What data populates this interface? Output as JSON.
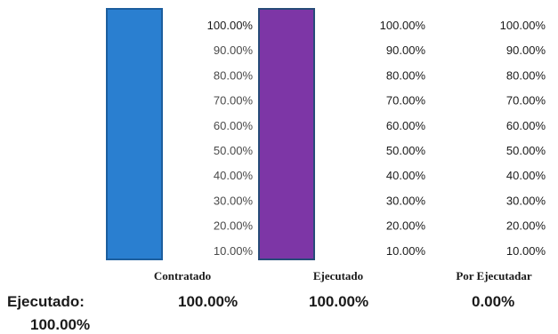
{
  "chart_data": {
    "type": "bar",
    "categories": [
      "Contratado",
      "Ejecutado",
      "Por Ejecutadar"
    ],
    "values": [
      100,
      100,
      0
    ],
    "ylim": [
      0,
      100
    ],
    "tick_labels": [
      "100.00%",
      "90.00%",
      "80.00%",
      "70.00%",
      "60.00%",
      "50.00%",
      "40.00%",
      "30.00%",
      "20.00%",
      "10.00%"
    ],
    "category_values": [
      "",
      "100.00%",
      "100.00%",
      "0.00%"
    ],
    "colors": {
      "Contratado": "#2a7fd0",
      "Ejecutado": "#7d36a6",
      "Por Ejecutadar": "#ffffff"
    }
  },
  "summary": {
    "label": "Ejecutado:",
    "value": "100.00%"
  }
}
